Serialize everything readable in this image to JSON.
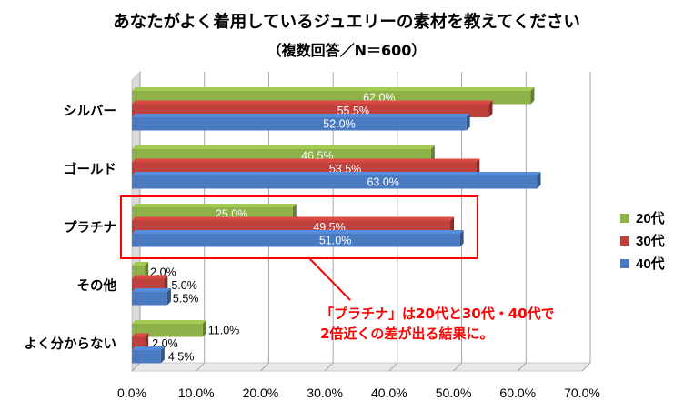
{
  "chart_data": {
    "type": "bar",
    "orientation": "horizontal",
    "title": "あなたがよく着用しているジュエリーの素材を教えてください",
    "subtitle": "（複数回答／N＝600）",
    "categories": [
      "シルバー",
      "ゴールド",
      "プラチナ",
      "その他",
      "よく分からない"
    ],
    "series": [
      {
        "name": "20代",
        "values": [
          62.0,
          46.5,
          25.0,
          2.0,
          11.0
        ],
        "labels": [
          "62.0%",
          "46.5%",
          "25.0%",
          "2.0%",
          "11.0%"
        ]
      },
      {
        "name": "30代",
        "values": [
          55.5,
          53.5,
          49.5,
          5.0,
          2.0
        ],
        "labels": [
          "55.5%",
          "53.5%",
          "49.5%",
          "5.0%",
          "2.0%"
        ]
      },
      {
        "name": "40代",
        "values": [
          52.0,
          63.0,
          51.0,
          5.5,
          4.5
        ],
        "labels": [
          "52.0%",
          "63.0%",
          "51.0%",
          "5.5%",
          "4.5%"
        ]
      }
    ],
    "xlim": [
      0,
      70
    ],
    "x_ticks": [
      "0.0%",
      "10.0%",
      "20.0%",
      "30.0%",
      "40.0%",
      "50.0%",
      "60.0%",
      "70.0%"
    ],
    "grid": true,
    "legend_position": "right",
    "colors": {
      "20代": "#8fb14a",
      "30代": "#c0403c",
      "40代": "#4a7ac0"
    },
    "annotation": {
      "highlight_category": "プラチナ",
      "text_lines": [
        "「プラチナ」は20代と30代・40代で",
        "2倍近くの差が出る結果に。"
      ],
      "color": "#ff0000"
    }
  }
}
